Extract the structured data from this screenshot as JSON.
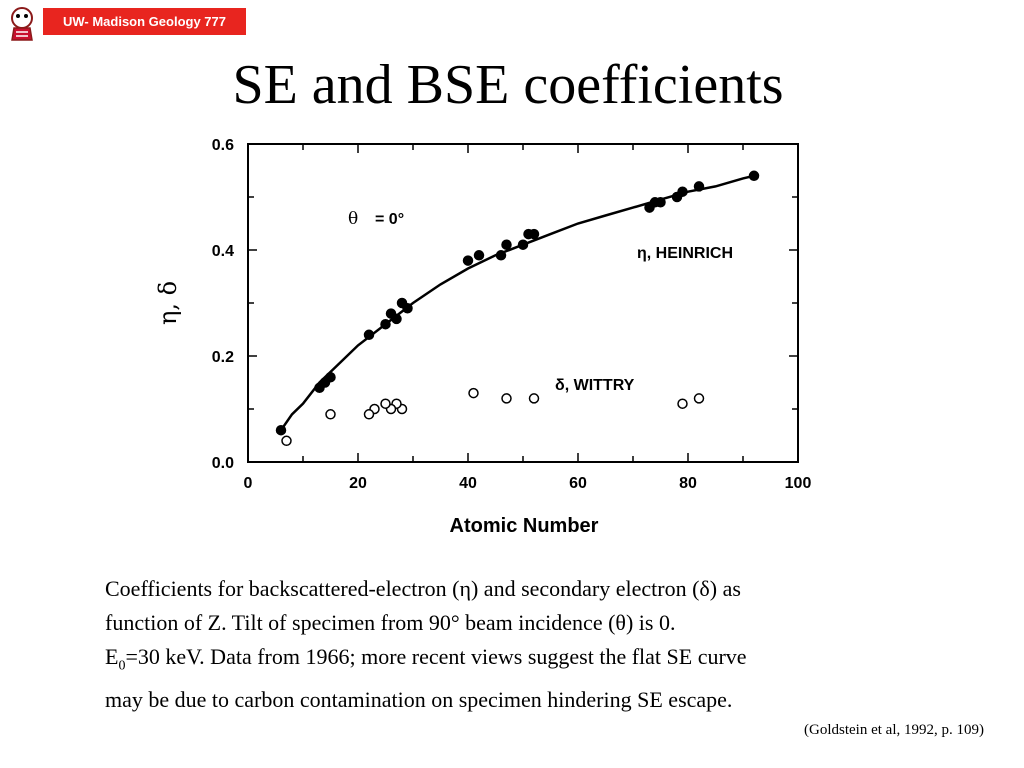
{
  "header": {
    "badge": "UW- Madison Geology  777",
    "title": "SE and BSE coefficients"
  },
  "caption": {
    "line1": "Coefficients for backscattered-electron (η) and secondary electron (δ) as",
    "line2": "function of Z. Tilt of specimen from 90° beam incidence (θ) is 0.",
    "line3_e": "E",
    "line3_sub": "0",
    "line3_rest": "=30 keV. Data from 1966; more recent views suggest the flat SE curve",
    "line4": "may be due to carbon contamination on specimen hindering SE escape."
  },
  "citation": "(Goldstein et al, 1992, p. 109)",
  "colors": {
    "badge": "#e8251f",
    "ink": "#000000"
  },
  "chart_data": {
    "type": "scatter",
    "xlabel": "Atomic Number",
    "ylabel": "η, δ",
    "xlim": [
      0,
      100
    ],
    "ylim": [
      0,
      0.6
    ],
    "x_ticks": [
      "0",
      "20",
      "40",
      "60",
      "80",
      "100"
    ],
    "y_ticks": [
      "0.0",
      "0.2",
      "0.4",
      "0.6"
    ],
    "annotation": {
      "theta_symbol": "θ",
      "theta_value": "= 0°"
    },
    "series": [
      {
        "name": "η, HEINRICH",
        "marker": "filled-circle",
        "x": [
          6,
          13,
          14,
          15,
          22,
          25,
          26,
          27,
          28,
          29,
          40,
          42,
          46,
          47,
          50,
          51,
          52,
          73,
          74,
          75,
          78,
          79,
          82,
          92
        ],
        "y": [
          0.06,
          0.14,
          0.15,
          0.16,
          0.24,
          0.26,
          0.28,
          0.27,
          0.3,
          0.29,
          0.38,
          0.39,
          0.39,
          0.41,
          0.41,
          0.43,
          0.43,
          0.48,
          0.49,
          0.49,
          0.5,
          0.51,
          0.52,
          0.54
        ]
      },
      {
        "name": "δ, WITTRY",
        "marker": "open-circle",
        "x": [
          7,
          15,
          22,
          23,
          25,
          26,
          27,
          28,
          41,
          47,
          52,
          79,
          82
        ],
        "y": [
          0.04,
          0.09,
          0.09,
          0.1,
          0.11,
          0.1,
          0.11,
          0.1,
          0.13,
          0.12,
          0.12,
          0.11,
          0.12
        ]
      }
    ],
    "fit_curve": {
      "x": [
        6,
        8,
        10,
        13,
        16,
        20,
        25,
        30,
        35,
        40,
        45,
        50,
        55,
        60,
        65,
        70,
        75,
        80,
        85,
        90,
        92
      ],
      "y": [
        0.06,
        0.09,
        0.11,
        0.15,
        0.18,
        0.22,
        0.26,
        0.3,
        0.335,
        0.365,
        0.39,
        0.41,
        0.43,
        0.45,
        0.465,
        0.48,
        0.495,
        0.51,
        0.52,
        0.535,
        0.54
      ]
    }
  }
}
